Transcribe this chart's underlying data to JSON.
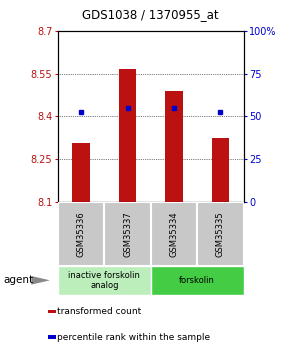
{
  "title": "GDS1038 / 1370955_at",
  "samples": [
    "GSM35336",
    "GSM35337",
    "GSM35334",
    "GSM35335"
  ],
  "bar_values": [
    8.305,
    8.565,
    8.49,
    8.325
  ],
  "percentile_values": [
    8.415,
    8.43,
    8.43,
    8.415
  ],
  "ymin": 8.1,
  "ymax": 8.7,
  "y2min": 0,
  "y2max": 100,
  "yticks": [
    8.1,
    8.25,
    8.4,
    8.55,
    8.7
  ],
  "ytick_labels": [
    "8.1",
    "8.25",
    "8.4",
    "8.55",
    "8.7"
  ],
  "y2ticks": [
    0,
    25,
    50,
    75,
    100
  ],
  "y2tick_labels": [
    "0",
    "25",
    "50",
    "75",
    "100%"
  ],
  "bar_color": "#BB1111",
  "percentile_color": "#0000CC",
  "agent_groups": [
    {
      "label": "inactive forskolin\nanalog",
      "color": "#BBEEBB",
      "span": [
        0.5,
        2.5
      ]
    },
    {
      "label": "forskolin",
      "color": "#44CC44",
      "span": [
        2.5,
        4.5
      ]
    }
  ],
  "legend_items": [
    {
      "color": "#BB1111",
      "label": "transformed count"
    },
    {
      "color": "#0000CC",
      "label": "percentile rank within the sample"
    }
  ],
  "bar_width": 0.38,
  "sample_box_color": "#C8C8C8",
  "agent_label": "agent"
}
